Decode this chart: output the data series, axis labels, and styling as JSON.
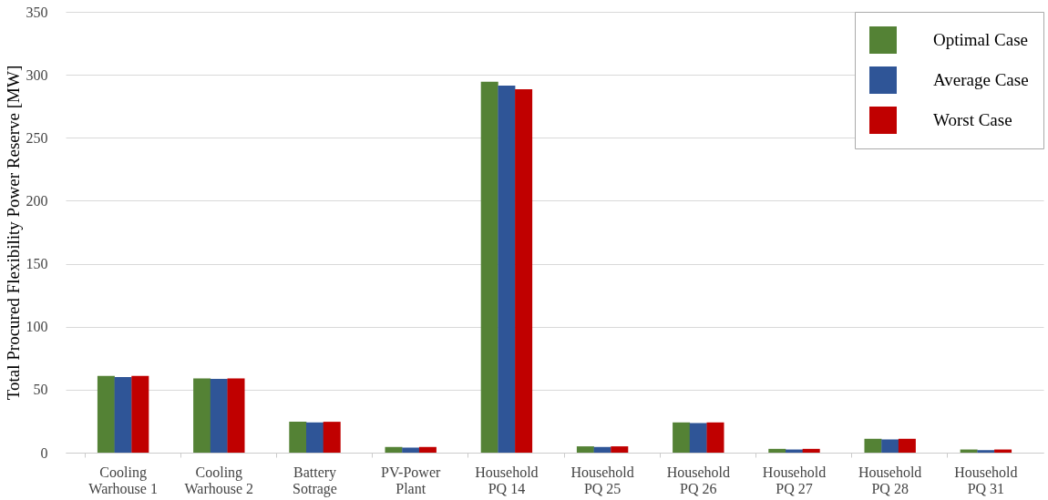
{
  "chart_data": {
    "type": "bar",
    "ylabel": "Total Procured Flexibility Power Reserve [MW]",
    "categories": [
      "Cooling\nWarhouse 1",
      "Cooling\nWarhouse 2",
      "Battery\nSotrage",
      "PV-Power\nPlant",
      "Household\nPQ 14",
      "Household\nPQ 25",
      "Household\nPQ 26",
      "Household\nPQ 27",
      "Household\nPQ 28",
      "Household\nPQ 31"
    ],
    "series": [
      {
        "name": "Optimal Case",
        "color": "#548235",
        "values": [
          61,
          59,
          24.5,
          4.5,
          294.5,
          5,
          24,
          3,
          11,
          2.5
        ]
      },
      {
        "name": "Average Case",
        "color": "#2f5597",
        "values": [
          60,
          58.5,
          24,
          4,
          291.5,
          4.5,
          23.5,
          2.5,
          10.5,
          2
        ]
      },
      {
        "name": "Worst Case",
        "color": "#c00000",
        "values": [
          61,
          59,
          24.5,
          4.5,
          288.5,
          5,
          24,
          3,
          11,
          2.5
        ]
      }
    ],
    "ylim": [
      0,
      350
    ],
    "yticks": [
      0,
      50,
      100,
      150,
      200,
      250,
      300,
      350
    ],
    "grid": "y",
    "legend": "top right"
  }
}
